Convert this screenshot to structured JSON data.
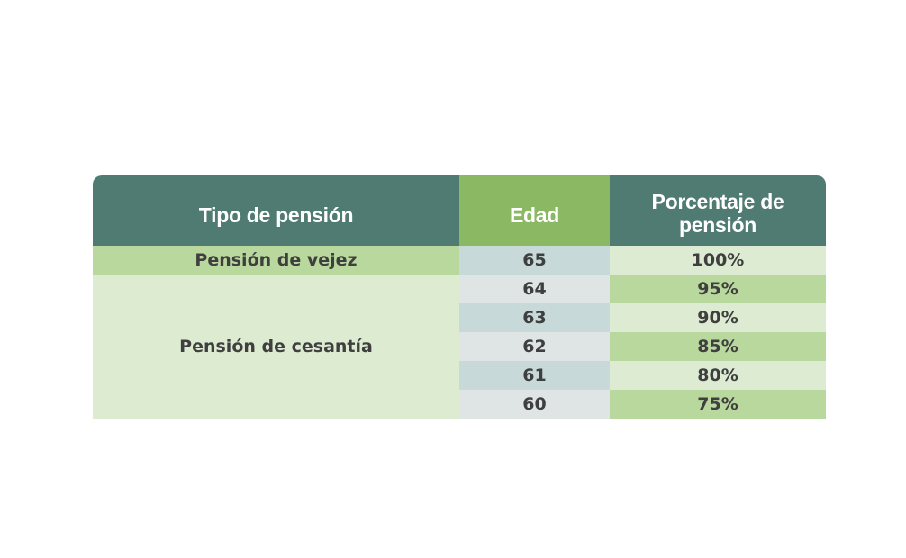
{
  "table": {
    "headers": {
      "type": "Tipo de pensión",
      "age": "Edad",
      "percent_line1": "Porcentaje de",
      "percent_line2": "pensión"
    },
    "groups": [
      {
        "type": "Pensión de vejez",
        "rows": [
          {
            "age": "65",
            "percent": "100%"
          }
        ]
      },
      {
        "type": "Pensión de cesantía",
        "rows": [
          {
            "age": "64",
            "percent": "95%"
          },
          {
            "age": "63",
            "percent": "90%"
          },
          {
            "age": "62",
            "percent": "85%"
          },
          {
            "age": "61",
            "percent": "80%"
          },
          {
            "age": "60",
            "percent": "75%"
          }
        ]
      }
    ],
    "colors": {
      "header_dark": "#4f7b72",
      "header_accent": "#8bb862",
      "row_green_dark": "#b9d89d",
      "row_green_light": "#ddebd1",
      "age_dark": "#c7dad9",
      "age_light": "#dfe5e4"
    }
  }
}
